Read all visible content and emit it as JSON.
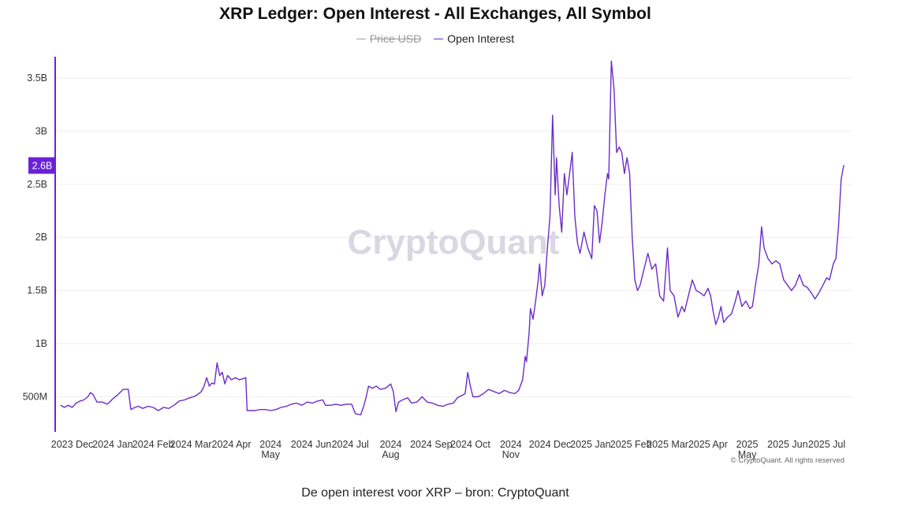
{
  "title": "XRP Ledger: Open Interest - All Exchanges, All Symbol",
  "legend": [
    {
      "label": "Price USD",
      "color": "#9e9e9e",
      "hidden": true
    },
    {
      "label": "Open Interest",
      "color": "#6a2dc9",
      "hidden": false
    }
  ],
  "watermark": "CryptoQuant",
  "copyright": "© CryptoQuant. All rights reserved",
  "current_badge": "2.6B",
  "caption": "De open interest voor XRP – bron: CryptoQuant",
  "colors": {
    "series": "#6a2dc9",
    "badge": "#6a22d8",
    "axis": "#6a22d8",
    "grid": "#eeeeee"
  },
  "chart_data": {
    "type": "line",
    "title": "XRP Ledger: Open Interest - All Exchanges, All Symbol",
    "grid": true,
    "legend_position": "top-center",
    "ylim": [
      0.17,
      3.7
    ],
    "y_ticks": [
      {
        "value": 0.5,
        "label": "500M"
      },
      {
        "value": 1.0,
        "label": "1B"
      },
      {
        "value": 1.5,
        "label": "1.5B"
      },
      {
        "value": 2.0,
        "label": "2B"
      },
      {
        "value": 2.5,
        "label": "2.5B"
      },
      {
        "value": 3.0,
        "label": "3B"
      },
      {
        "value": 3.5,
        "label": "3.5B"
      }
    ],
    "xlim": [
      "2023-11-18",
      "2025-07-20"
    ],
    "x_ticks": [
      {
        "date": "2023-12-01",
        "label": "2023 Dec"
      },
      {
        "date": "2024-01-01",
        "label": "2024 Jan"
      },
      {
        "date": "2024-02-01",
        "label": "2024 Feb"
      },
      {
        "date": "2024-03-01",
        "label": "2024 Mar"
      },
      {
        "date": "2024-04-01",
        "label": "2024 Apr"
      },
      {
        "date": "2024-05-01",
        "label": "2024 May"
      },
      {
        "date": "2024-06-01",
        "label": "2024 Jun"
      },
      {
        "date": "2024-07-01",
        "label": "2024 Jul"
      },
      {
        "date": "2024-08-01",
        "label": "2024 Aug"
      },
      {
        "date": "2024-09-01",
        "label": "2024 Sep"
      },
      {
        "date": "2024-10-01",
        "label": "2024 Oct"
      },
      {
        "date": "2024-11-01",
        "label": "2024 Nov"
      },
      {
        "date": "2024-12-01",
        "label": "2024 Dec"
      },
      {
        "date": "2025-01-01",
        "label": "2025 Jan"
      },
      {
        "date": "2025-02-01",
        "label": "2025 Feb"
      },
      {
        "date": "2025-03-01",
        "label": "2025 Mar"
      },
      {
        "date": "2025-04-01",
        "label": "2025 Apr"
      },
      {
        "date": "2025-05-01",
        "label": "2025 May"
      },
      {
        "date": "2025-06-01",
        "label": "2025 Jun"
      },
      {
        "date": "2025-07-01",
        "label": "2025 Jul"
      }
    ],
    "y_unit": "billions USD",
    "series": [
      {
        "name": "Open Interest",
        "color": "#6a2dc9",
        "points": [
          [
            "2023-11-22",
            0.42
          ],
          [
            "2023-11-25",
            0.4
          ],
          [
            "2023-11-28",
            0.42
          ],
          [
            "2023-12-01",
            0.4
          ],
          [
            "2023-12-04",
            0.44
          ],
          [
            "2023-12-07",
            0.46
          ],
          [
            "2023-12-10",
            0.47
          ],
          [
            "2023-12-13",
            0.5
          ],
          [
            "2023-12-15",
            0.54
          ],
          [
            "2023-12-17",
            0.52
          ],
          [
            "2023-12-20",
            0.45
          ],
          [
            "2023-12-24",
            0.45
          ],
          [
            "2023-12-28",
            0.43
          ],
          [
            "2024-01-01",
            0.48
          ],
          [
            "2024-01-05",
            0.52
          ],
          [
            "2024-01-09",
            0.57
          ],
          [
            "2024-01-13",
            0.57
          ],
          [
            "2024-01-15",
            0.38
          ],
          [
            "2024-01-18",
            0.4
          ],
          [
            "2024-01-21",
            0.41
          ],
          [
            "2024-01-24",
            0.39
          ],
          [
            "2024-01-28",
            0.41
          ],
          [
            "2024-02-01",
            0.4
          ],
          [
            "2024-02-05",
            0.37
          ],
          [
            "2024-02-09",
            0.4
          ],
          [
            "2024-02-13",
            0.39
          ],
          [
            "2024-02-17",
            0.42
          ],
          [
            "2024-02-21",
            0.46
          ],
          [
            "2024-02-25",
            0.47
          ],
          [
            "2024-02-29",
            0.49
          ],
          [
            "2024-03-03",
            0.5
          ],
          [
            "2024-03-06",
            0.52
          ],
          [
            "2024-03-09",
            0.55
          ],
          [
            "2024-03-11",
            0.6
          ],
          [
            "2024-03-13",
            0.68
          ],
          [
            "2024-03-15",
            0.6
          ],
          [
            "2024-03-17",
            0.63
          ],
          [
            "2024-03-19",
            0.62
          ],
          [
            "2024-03-21",
            0.82
          ],
          [
            "2024-03-23",
            0.7
          ],
          [
            "2024-03-25",
            0.73
          ],
          [
            "2024-03-27",
            0.62
          ],
          [
            "2024-03-29",
            0.7
          ],
          [
            "2024-04-01",
            0.66
          ],
          [
            "2024-04-04",
            0.68
          ],
          [
            "2024-04-07",
            0.66
          ],
          [
            "2024-04-10",
            0.67
          ],
          [
            "2024-04-12",
            0.68
          ],
          [
            "2024-04-13",
            0.37
          ],
          [
            "2024-04-16",
            0.37
          ],
          [
            "2024-04-19",
            0.37
          ],
          [
            "2024-04-23",
            0.38
          ],
          [
            "2024-04-27",
            0.38
          ],
          [
            "2024-05-01",
            0.37
          ],
          [
            "2024-05-05",
            0.38
          ],
          [
            "2024-05-09",
            0.4
          ],
          [
            "2024-05-13",
            0.41
          ],
          [
            "2024-05-17",
            0.43
          ],
          [
            "2024-05-21",
            0.44
          ],
          [
            "2024-05-25",
            0.42
          ],
          [
            "2024-05-29",
            0.45
          ],
          [
            "2024-06-02",
            0.44
          ],
          [
            "2024-06-06",
            0.46
          ],
          [
            "2024-06-10",
            0.47
          ],
          [
            "2024-06-12",
            0.42
          ],
          [
            "2024-06-16",
            0.42
          ],
          [
            "2024-06-20",
            0.43
          ],
          [
            "2024-06-24",
            0.42
          ],
          [
            "2024-06-28",
            0.43
          ],
          [
            "2024-07-02",
            0.43
          ],
          [
            "2024-07-05",
            0.34
          ],
          [
            "2024-07-09",
            0.33
          ],
          [
            "2024-07-11",
            0.4
          ],
          [
            "2024-07-13",
            0.49
          ],
          [
            "2024-07-15",
            0.6
          ],
          [
            "2024-07-18",
            0.58
          ],
          [
            "2024-07-21",
            0.6
          ],
          [
            "2024-07-24",
            0.57
          ],
          [
            "2024-07-28",
            0.58
          ],
          [
            "2024-08-01",
            0.62
          ],
          [
            "2024-08-03",
            0.55
          ],
          [
            "2024-08-05",
            0.36
          ],
          [
            "2024-08-07",
            0.45
          ],
          [
            "2024-08-10",
            0.47
          ],
          [
            "2024-08-14",
            0.49
          ],
          [
            "2024-08-17",
            0.44
          ],
          [
            "2024-08-21",
            0.45
          ],
          [
            "2024-08-25",
            0.5
          ],
          [
            "2024-08-29",
            0.45
          ],
          [
            "2024-09-02",
            0.44
          ],
          [
            "2024-09-06",
            0.42
          ],
          [
            "2024-09-10",
            0.41
          ],
          [
            "2024-09-14",
            0.43
          ],
          [
            "2024-09-18",
            0.44
          ],
          [
            "2024-09-21",
            0.49
          ],
          [
            "2024-09-24",
            0.51
          ],
          [
            "2024-09-27",
            0.53
          ],
          [
            "2024-09-29",
            0.73
          ],
          [
            "2024-10-01",
            0.6
          ],
          [
            "2024-10-03",
            0.5
          ],
          [
            "2024-10-07",
            0.5
          ],
          [
            "2024-10-11",
            0.53
          ],
          [
            "2024-10-15",
            0.57
          ],
          [
            "2024-10-19",
            0.55
          ],
          [
            "2024-10-23",
            0.53
          ],
          [
            "2024-10-27",
            0.56
          ],
          [
            "2024-10-31",
            0.54
          ],
          [
            "2024-11-04",
            0.53
          ],
          [
            "2024-11-07",
            0.56
          ],
          [
            "2024-11-10",
            0.66
          ],
          [
            "2024-11-12",
            0.88
          ],
          [
            "2024-11-13",
            0.83
          ],
          [
            "2024-11-15",
            1.1
          ],
          [
            "2024-11-16",
            1.33
          ],
          [
            "2024-11-18",
            1.23
          ],
          [
            "2024-11-20",
            1.4
          ],
          [
            "2024-11-22",
            1.6
          ],
          [
            "2024-11-23",
            1.75
          ],
          [
            "2024-11-25",
            1.45
          ],
          [
            "2024-11-27",
            1.55
          ],
          [
            "2024-11-29",
            1.9
          ],
          [
            "2024-12-01",
            2.2
          ],
          [
            "2024-12-03",
            3.15
          ],
          [
            "2024-12-05",
            2.4
          ],
          [
            "2024-12-06",
            2.75
          ],
          [
            "2024-12-08",
            2.3
          ],
          [
            "2024-12-10",
            2.05
          ],
          [
            "2024-12-12",
            2.6
          ],
          [
            "2024-12-14",
            2.4
          ],
          [
            "2024-12-16",
            2.6
          ],
          [
            "2024-12-18",
            2.8
          ],
          [
            "2024-12-20",
            2.2
          ],
          [
            "2024-12-22",
            1.95
          ],
          [
            "2024-12-24",
            1.85
          ],
          [
            "2024-12-27",
            2.05
          ],
          [
            "2024-12-30",
            1.9
          ],
          [
            "2025-01-02",
            1.8
          ],
          [
            "2025-01-04",
            2.3
          ],
          [
            "2025-01-06",
            2.25
          ],
          [
            "2025-01-08",
            1.95
          ],
          [
            "2025-01-10",
            2.15
          ],
          [
            "2025-01-12",
            2.4
          ],
          [
            "2025-01-14",
            2.6
          ],
          [
            "2025-01-15",
            2.55
          ],
          [
            "2025-01-17",
            3.66
          ],
          [
            "2025-01-19",
            3.4
          ],
          [
            "2025-01-21",
            2.8
          ],
          [
            "2025-01-23",
            2.85
          ],
          [
            "2025-01-25",
            2.8
          ],
          [
            "2025-01-27",
            2.6
          ],
          [
            "2025-01-29",
            2.75
          ],
          [
            "2025-01-31",
            2.6
          ],
          [
            "2025-02-02",
            2.0
          ],
          [
            "2025-02-04",
            1.6
          ],
          [
            "2025-02-06",
            1.5
          ],
          [
            "2025-02-08",
            1.55
          ],
          [
            "2025-02-11",
            1.7
          ],
          [
            "2025-02-14",
            1.85
          ],
          [
            "2025-02-17",
            1.7
          ],
          [
            "2025-02-20",
            1.75
          ],
          [
            "2025-02-23",
            1.45
          ],
          [
            "2025-02-26",
            1.4
          ],
          [
            "2025-03-01",
            1.9
          ],
          [
            "2025-03-03",
            1.5
          ],
          [
            "2025-03-06",
            1.45
          ],
          [
            "2025-03-09",
            1.25
          ],
          [
            "2025-03-12",
            1.35
          ],
          [
            "2025-03-14",
            1.3
          ],
          [
            "2025-03-17",
            1.45
          ],
          [
            "2025-03-20",
            1.6
          ],
          [
            "2025-03-23",
            1.5
          ],
          [
            "2025-03-26",
            1.48
          ],
          [
            "2025-03-29",
            1.45
          ],
          [
            "2025-04-01",
            1.52
          ],
          [
            "2025-04-03",
            1.45
          ],
          [
            "2025-04-05",
            1.3
          ],
          [
            "2025-04-07",
            1.18
          ],
          [
            "2025-04-09",
            1.25
          ],
          [
            "2025-04-11",
            1.35
          ],
          [
            "2025-04-13",
            1.2
          ],
          [
            "2025-04-16",
            1.25
          ],
          [
            "2025-04-19",
            1.28
          ],
          [
            "2025-04-22",
            1.4
          ],
          [
            "2025-04-24",
            1.5
          ],
          [
            "2025-04-27",
            1.35
          ],
          [
            "2025-04-30",
            1.4
          ],
          [
            "2025-05-03",
            1.33
          ],
          [
            "2025-05-05",
            1.35
          ],
          [
            "2025-05-08",
            1.6
          ],
          [
            "2025-05-10",
            1.75
          ],
          [
            "2025-05-12",
            2.1
          ],
          [
            "2025-05-14",
            1.9
          ],
          [
            "2025-05-17",
            1.8
          ],
          [
            "2025-05-20",
            1.75
          ],
          [
            "2025-05-23",
            1.78
          ],
          [
            "2025-05-26",
            1.75
          ],
          [
            "2025-05-29",
            1.6
          ],
          [
            "2025-06-01",
            1.55
          ],
          [
            "2025-06-04",
            1.5
          ],
          [
            "2025-06-07",
            1.55
          ],
          [
            "2025-06-10",
            1.65
          ],
          [
            "2025-06-13",
            1.55
          ],
          [
            "2025-06-16",
            1.53
          ],
          [
            "2025-06-19",
            1.48
          ],
          [
            "2025-06-22",
            1.42
          ],
          [
            "2025-06-25",
            1.48
          ],
          [
            "2025-06-28",
            1.55
          ],
          [
            "2025-07-01",
            1.62
          ],
          [
            "2025-07-03",
            1.6
          ],
          [
            "2025-07-06",
            1.75
          ],
          [
            "2025-07-08",
            1.8
          ],
          [
            "2025-07-10",
            2.1
          ],
          [
            "2025-07-12",
            2.55
          ],
          [
            "2025-07-14",
            2.68
          ]
        ]
      }
    ]
  }
}
